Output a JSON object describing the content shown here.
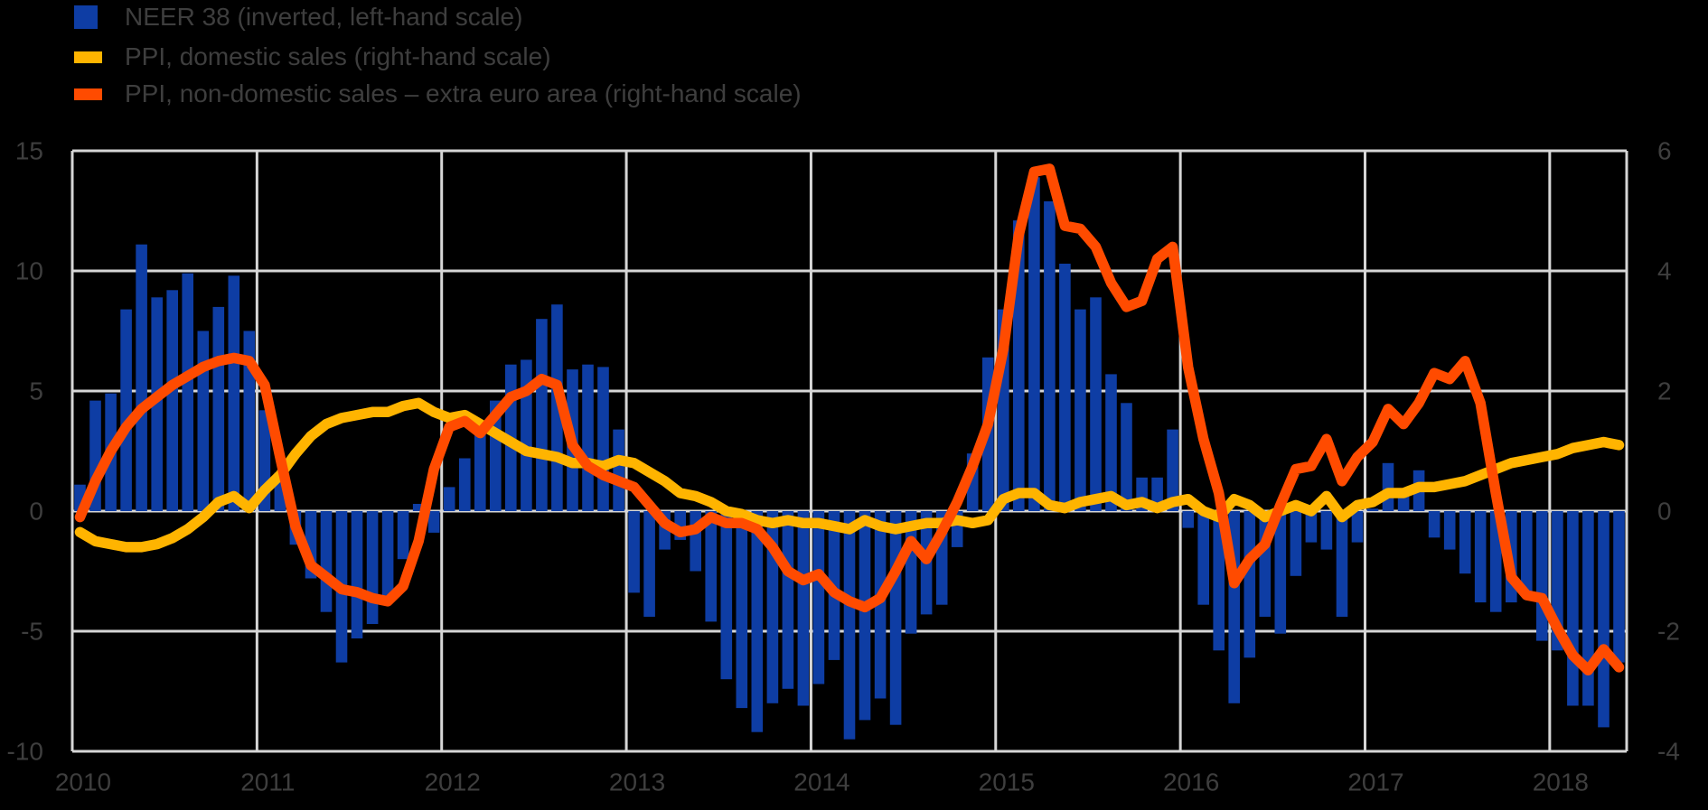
{
  "legend": {
    "items": [
      {
        "id": "neer",
        "label": "NEER 38 (inverted, left-hand scale)",
        "color": "#0E3DA4",
        "swatch": "square"
      },
      {
        "id": "domestic",
        "label": "PPI, domestic sales (right-hand scale)",
        "color": "#FFB400",
        "swatch": "line"
      },
      {
        "id": "nondomestic",
        "label": "PPI, non-domestic sales – extra euro area (right-hand scale)",
        "color": "#FF4B00",
        "swatch": "line"
      }
    ]
  },
  "chart_data": {
    "type": "combo",
    "x_unit": "month",
    "start_month": "2010-01",
    "end_month": "2018-05",
    "n_points": 101,
    "x_tick_labels": [
      "2010",
      "2011",
      "2012",
      "2013",
      "2014",
      "2015",
      "2016",
      "2017",
      "2018"
    ],
    "left_axis": {
      "label": "",
      "ticks": [
        15,
        10,
        5,
        0,
        -5,
        -10
      ],
      "range": [
        -10,
        15
      ]
    },
    "right_axis": {
      "label": "",
      "ticks": [
        6,
        4,
        2,
        0,
        -2,
        -4
      ],
      "range": [
        -4,
        6
      ]
    },
    "grid": true,
    "legend_position": "top-left",
    "colors": {
      "background": "#000000",
      "gridline": "#D6D6D6",
      "text": "#3E3E3E",
      "bar_blue": "#0E3DA4",
      "line_yellow": "#FFB400",
      "line_orange": "#FF4B00"
    },
    "series": [
      {
        "name": "NEER 38 (inverted)",
        "type": "bar",
        "axis": "left",
        "color": "#0E3DA4",
        "values": [
          1.1,
          4.6,
          4.9,
          8.4,
          11.1,
          8.9,
          9.2,
          9.9,
          7.5,
          8.5,
          9.8,
          7.5,
          4.2,
          1.6,
          -1.4,
          -2.8,
          -4.2,
          -6.3,
          -5.3,
          -4.7,
          -3.7,
          -2.0,
          0.3,
          -0.9,
          1.0,
          2.2,
          3.7,
          4.6,
          6.1,
          6.3,
          8.0,
          8.6,
          5.9,
          6.1,
          6.0,
          3.4,
          -3.4,
          -4.4,
          -1.6,
          -1.2,
          -2.5,
          -4.6,
          -7.0,
          -8.2,
          -9.2,
          -8.0,
          -7.4,
          -8.1,
          -7.2,
          -6.2,
          -9.5,
          -8.7,
          -7.8,
          -8.9,
          -5.1,
          -4.3,
          -3.9,
          -1.5,
          2.4,
          6.4,
          8.4,
          12.1,
          13.9,
          12.9,
          10.3,
          8.4,
          8.9,
          5.7,
          4.5,
          1.4,
          1.4,
          3.4,
          -0.7,
          -3.9,
          -5.8,
          -8.0,
          -6.1,
          -4.4,
          -5.1,
          -2.7,
          -1.3,
          -1.6,
          -4.4,
          -1.3,
          0.1,
          2.0,
          0.6,
          1.7,
          -1.1,
          -1.6,
          -2.6,
          -3.8,
          -4.2,
          -3.8,
          -3.5,
          -5.4,
          -5.8,
          -8.1,
          -8.1,
          -9.0,
          -6.3
        ]
      },
      {
        "name": "PPI, domestic sales",
        "type": "line",
        "axis": "right",
        "color": "#FFB400",
        "values": [
          -0.35,
          -0.5,
          -0.55,
          -0.6,
          -0.6,
          -0.55,
          -0.45,
          -0.3,
          -0.1,
          0.15,
          0.25,
          0.05,
          0.35,
          0.6,
          0.95,
          1.25,
          1.45,
          1.55,
          1.6,
          1.65,
          1.65,
          1.75,
          1.8,
          1.65,
          1.55,
          1.6,
          1.45,
          1.3,
          1.15,
          1.0,
          0.95,
          0.9,
          0.8,
          0.8,
          0.75,
          0.85,
          0.8,
          0.65,
          0.5,
          0.3,
          0.25,
          0.15,
          0.0,
          -0.05,
          -0.15,
          -0.2,
          -0.15,
          -0.2,
          -0.2,
          -0.25,
          -0.3,
          -0.15,
          -0.25,
          -0.3,
          -0.25,
          -0.2,
          -0.2,
          -0.15,
          -0.2,
          -0.15,
          0.2,
          0.3,
          0.3,
          0.1,
          0.05,
          0.15,
          0.2,
          0.25,
          0.1,
          0.15,
          0.05,
          0.15,
          0.2,
          0.0,
          -0.1,
          0.2,
          0.1,
          -0.1,
          0.0,
          0.1,
          0.0,
          0.25,
          -0.1,
          0.1,
          0.15,
          0.3,
          0.3,
          0.4,
          0.4,
          0.45,
          0.5,
          0.6,
          0.7,
          0.8,
          0.85,
          0.9,
          0.95,
          1.05,
          1.1,
          1.15,
          1.1
        ]
      },
      {
        "name": "PPI, non-domestic sales – extra euro area",
        "type": "line",
        "axis": "right",
        "color": "#FF4B00",
        "values": [
          -0.1,
          0.5,
          1.0,
          1.4,
          1.7,
          1.9,
          2.1,
          2.25,
          2.4,
          2.5,
          2.55,
          2.5,
          2.1,
          0.9,
          -0.25,
          -0.9,
          -1.1,
          -1.3,
          -1.35,
          -1.45,
          -1.5,
          -1.25,
          -0.5,
          0.7,
          1.4,
          1.5,
          1.3,
          1.6,
          1.9,
          2.0,
          2.2,
          2.1,
          1.1,
          0.75,
          0.6,
          0.5,
          0.4,
          0.1,
          -0.2,
          -0.35,
          -0.3,
          -0.1,
          -0.2,
          -0.2,
          -0.3,
          -0.6,
          -1.0,
          -1.15,
          -1.05,
          -1.35,
          -1.5,
          -1.6,
          -1.45,
          -1.0,
          -0.5,
          -0.8,
          -0.35,
          0.15,
          0.75,
          1.45,
          2.7,
          4.6,
          5.65,
          5.7,
          4.75,
          4.7,
          4.4,
          3.8,
          3.4,
          3.5,
          4.2,
          4.4,
          2.4,
          1.2,
          0.3,
          -1.2,
          -0.8,
          -0.55,
          0.1,
          0.7,
          0.75,
          1.2,
          0.5,
          0.9,
          1.15,
          1.7,
          1.45,
          1.8,
          2.3,
          2.2,
          2.5,
          1.8,
          0.3,
          -1.1,
          -1.4,
          -1.45,
          -1.95,
          -2.4,
          -2.65,
          -2.3,
          -2.6
        ]
      }
    ]
  }
}
